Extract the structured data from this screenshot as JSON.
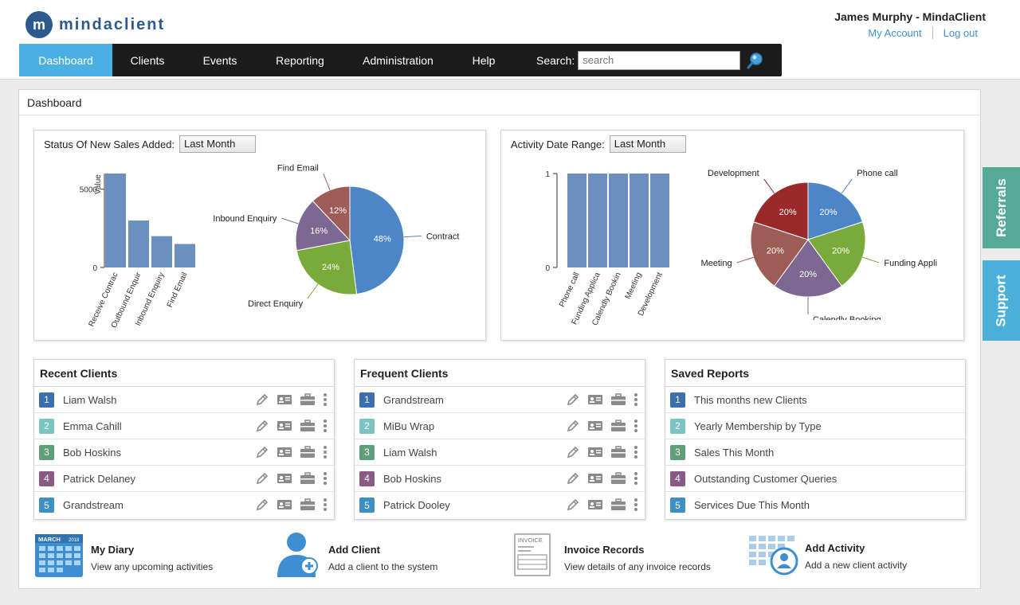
{
  "header": {
    "logo_text": "mindaclient",
    "user_name": "James Murphy - MindaClient",
    "my_account": "My Account",
    "log_out": "Log out"
  },
  "nav": {
    "items": [
      "Dashboard",
      "Clients",
      "Events",
      "Reporting",
      "Administration",
      "Help"
    ],
    "search_label": "Search:",
    "search_placeholder": "search"
  },
  "main": {
    "title": "Dashboard"
  },
  "sales_panel": {
    "label": "Status Of New Sales Added:",
    "range": "Last Month"
  },
  "activity_panel": {
    "label": "Activity Date Range:",
    "range": "Last Month"
  },
  "chart_data": [
    {
      "type": "bar",
      "categories": [
        "Receive Contrac",
        "Outbound Enquir",
        "Inbound Enquiry",
        "Find Email"
      ],
      "values": [
        6000,
        3000,
        2000,
        1500
      ],
      "ylabel": "Value",
      "yticks": [
        0,
        5000
      ],
      "ylim": [
        0,
        6000
      ],
      "color": "#6b8fbf"
    },
    {
      "type": "pie",
      "slices": [
        {
          "label": "Contract",
          "value": 48,
          "text": "48%",
          "color": "#4d86c6"
        },
        {
          "label": "Direct Enquiry",
          "value": 24,
          "text": "24%",
          "color": "#7aab3a"
        },
        {
          "label": "Inbound Enquiry",
          "value": 16,
          "text": "16%",
          "color": "#7d6891"
        },
        {
          "label": "Find Email",
          "value": 12,
          "text": "12%",
          "color": "#9e5c57"
        }
      ]
    },
    {
      "type": "bar",
      "categories": [
        "Phone call",
        "Funding Applica",
        "Calendly Bookin",
        "Meeting",
        "Development"
      ],
      "values": [
        1,
        1,
        1,
        1,
        1
      ],
      "yticks": [
        0,
        1
      ],
      "ylim": [
        0,
        1
      ],
      "color": "#6b8fbf"
    },
    {
      "type": "pie",
      "slices": [
        {
          "label": "Phone call",
          "value": 20,
          "text": "20%",
          "color": "#4d86c6"
        },
        {
          "label": "Funding Appli",
          "value": 20,
          "text": "20%",
          "color": "#7aab3a"
        },
        {
          "label": "Calendly Booking",
          "value": 20,
          "text": "20%",
          "color": "#7d6891"
        },
        {
          "label": "Meeting",
          "value": 20,
          "text": "20%",
          "color": "#9e5c57"
        },
        {
          "label": "Development",
          "value": 20,
          "text": "20%",
          "color": "#9a2a2a"
        }
      ]
    }
  ],
  "lists": [
    {
      "title": "Recent Clients",
      "items": [
        "Liam Walsh",
        "Emma Cahill",
        "Bob Hoskins",
        "Patrick Delaney",
        "Grandstream"
      ],
      "actions": true
    },
    {
      "title": "Frequent Clients",
      "items": [
        "Grandstream",
        "MiBu Wrap",
        "Liam Walsh",
        "Bob Hoskins",
        "Patrick Dooley"
      ],
      "actions": true
    },
    {
      "title": "Saved Reports",
      "items": [
        "This months new Clients",
        "Yearly Membership by Type",
        "Sales This Month",
        "Outstanding Customer Queries",
        "Services Due This Month"
      ],
      "actions": false
    }
  ],
  "badge_numbers": [
    "1",
    "2",
    "3",
    "4",
    "5"
  ],
  "badge_colors": [
    "#3b6fb0",
    "#7cc4c4",
    "#5e9e78",
    "#8a5a86",
    "#3d8fc6"
  ],
  "quick_actions": [
    {
      "title": "My Diary",
      "desc": "View any upcoming activities",
      "icon": "calendar-icon",
      "badge_month": "MARCH",
      "badge_year": "2018"
    },
    {
      "title": "Add Client",
      "desc": "Add a client to the system",
      "icon": "add-user-icon"
    },
    {
      "title": "Invoice Records",
      "desc": "View details of any invoice records",
      "icon": "invoice-icon",
      "badge": "INVOICE"
    },
    {
      "title": "Add Activity",
      "desc": "Add a new client activity",
      "icon": "activity-calendar-icon"
    }
  ],
  "side_tabs": [
    {
      "label": "Referrals",
      "color": "#55a996"
    },
    {
      "label": "Support",
      "color": "#4ab0d9"
    }
  ]
}
